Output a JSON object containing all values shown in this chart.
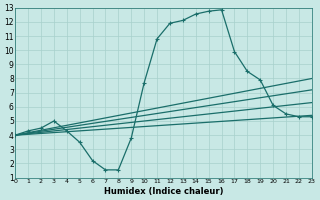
{
  "xlabel": "Humidex (Indice chaleur)",
  "background_color": "#c8e8e5",
  "grid_color": "#a8d0cc",
  "line_color": "#1a6e6a",
  "xlim": [
    0,
    23
  ],
  "ylim": [
    1,
    13
  ],
  "xticks": [
    0,
    1,
    2,
    3,
    4,
    5,
    6,
    7,
    8,
    9,
    10,
    11,
    12,
    13,
    14,
    15,
    16,
    17,
    18,
    19,
    20,
    21,
    22,
    23
  ],
  "yticks": [
    1,
    2,
    3,
    4,
    5,
    6,
    7,
    8,
    9,
    10,
    11,
    12,
    13
  ],
  "curve_x": [
    0,
    1,
    2,
    3,
    4,
    5,
    6,
    7,
    8,
    9,
    10,
    11,
    12,
    13,
    14,
    15,
    16,
    17,
    18,
    19,
    20,
    21,
    22,
    23
  ],
  "curve_y": [
    4.0,
    4.3,
    4.5,
    5.0,
    4.3,
    3.5,
    2.2,
    1.55,
    1.55,
    3.8,
    7.7,
    10.8,
    11.9,
    12.1,
    12.55,
    12.75,
    12.85,
    9.9,
    8.5,
    7.9,
    6.1,
    5.5,
    5.3,
    5.3
  ],
  "trend_lines": [
    {
      "x": [
        0,
        23
      ],
      "y": [
        4.0,
        5.4
      ]
    },
    {
      "x": [
        0,
        23
      ],
      "y": [
        4.0,
        6.3
      ]
    },
    {
      "x": [
        0,
        23
      ],
      "y": [
        4.0,
        7.2
      ]
    },
    {
      "x": [
        0,
        23
      ],
      "y": [
        4.0,
        8.0
      ]
    }
  ]
}
